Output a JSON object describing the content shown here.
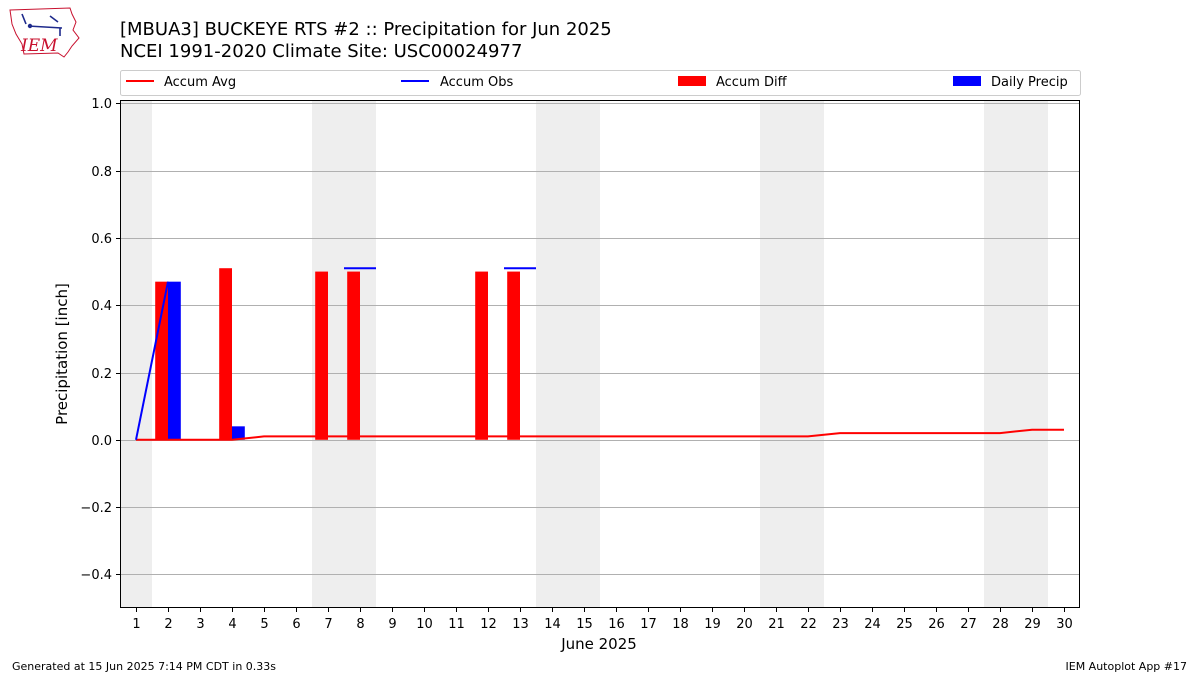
{
  "header": {
    "title_line1": "[MBUA3] BUCKEYE RTS #2 :: Precipitation for Jun 2025",
    "title_line2": "NCEI 1991-2020 Climate Site: USC00024977"
  },
  "logo": {
    "text": "IEM"
  },
  "footer": {
    "generated": "Generated at 15 Jun 2025 7:14 PM CDT in 0.33s",
    "app": "IEM Autoplot App #17"
  },
  "colors": {
    "accum_avg": "#ff0000",
    "accum_obs": "#0000ff",
    "accum_diff": "#ff0000",
    "daily_precip": "#0000ff",
    "weekend_shade": "#eeeeee",
    "grid": "#b0b0b0"
  },
  "chart_data": {
    "type": "bar",
    "xlabel": "June 2025",
    "ylabel": "Precipitation [inch]",
    "xlim": [
      0.5,
      30.5
    ],
    "ylim": [
      -0.5,
      1.01
    ],
    "yticks": [
      -0.4,
      -0.2,
      0.0,
      0.2,
      0.4,
      0.6,
      0.8,
      1.0
    ],
    "ytick_labels": [
      "−0.4",
      "−0.2",
      "0.0",
      "0.2",
      "0.4",
      "0.6",
      "0.8",
      "1.0"
    ],
    "days": [
      1,
      2,
      3,
      4,
      5,
      6,
      7,
      8,
      9,
      10,
      11,
      12,
      13,
      14,
      15,
      16,
      17,
      18,
      19,
      20,
      21,
      22,
      23,
      24,
      25,
      26,
      27,
      28,
      29,
      30
    ],
    "day_labels": [
      "1",
      "2",
      "3",
      "4",
      "5",
      "6",
      "7",
      "8",
      "9",
      "10",
      "11",
      "12",
      "13",
      "14",
      "15",
      "16",
      "17",
      "18",
      "19",
      "20",
      "21",
      "22",
      "23",
      "24",
      "25",
      "26",
      "27",
      "28",
      "29",
      "30"
    ],
    "grid": true,
    "weekend_spans": [
      [
        1,
        1
      ],
      [
        7,
        8
      ],
      [
        14,
        15
      ],
      [
        21,
        22
      ],
      [
        28,
        29
      ]
    ],
    "legend_placement": "top, above plot",
    "legend": [
      {
        "label": "Accum Avg",
        "kind": "line",
        "color": "#ff0000"
      },
      {
        "label": "Accum Obs",
        "kind": "line",
        "color": "#0000ff"
      },
      {
        "label": "Accum Diff",
        "kind": "bar",
        "color": "#ff0000"
      },
      {
        "label": "Daily Precip",
        "kind": "bar",
        "color": "#0000ff"
      }
    ],
    "series": [
      {
        "name": "Accum Avg",
        "type": "line",
        "x": [
          1,
          2,
          3,
          4,
          5,
          6,
          7,
          8,
          9,
          10,
          11,
          12,
          13,
          14,
          15,
          16,
          17,
          18,
          19,
          20,
          21,
          22,
          23,
          24,
          25,
          26,
          27,
          28,
          29,
          30
        ],
        "values": [
          0.0,
          0.0,
          0.0,
          0.0,
          0.01,
          0.01,
          0.01,
          0.01,
          0.01,
          0.01,
          0.01,
          0.01,
          0.01,
          0.01,
          0.01,
          0.01,
          0.01,
          0.01,
          0.01,
          0.01,
          0.01,
          0.01,
          0.02,
          0.02,
          0.02,
          0.02,
          0.02,
          0.02,
          0.03,
          0.03
        ]
      },
      {
        "name": "Accum Obs",
        "type": "line",
        "segments": [
          {
            "x": [
              1,
              2
            ],
            "values": [
              0.0,
              0.47
            ]
          },
          {
            "x": [
              7.5,
              8.5
            ],
            "values": [
              0.51,
              0.51
            ]
          },
          {
            "x": [
              12.5,
              13.5
            ],
            "values": [
              0.51,
              0.51
            ]
          }
        ]
      },
      {
        "name": "Accum Diff",
        "type": "bar",
        "x": [
          2,
          4,
          7,
          8,
          12,
          13
        ],
        "values": [
          0.47,
          0.51,
          0.5,
          0.5,
          0.5,
          0.5
        ]
      },
      {
        "name": "Daily Precip",
        "type": "bar",
        "x": [
          2,
          4
        ],
        "values": [
          0.47,
          0.04
        ]
      }
    ]
  }
}
